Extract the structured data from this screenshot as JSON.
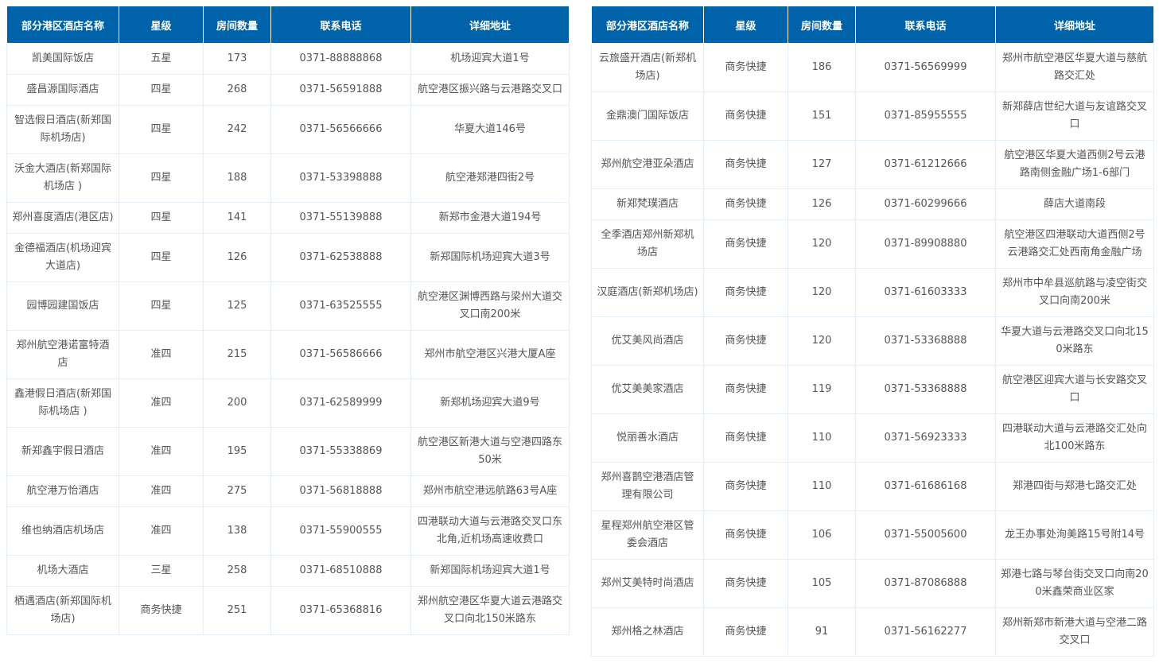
{
  "colors": {
    "header_bg": "#0062a8",
    "header_text": "#ffffff",
    "cell_text": "#555555",
    "border": "#e4eef6"
  },
  "columns": [
    "部分港区酒店名称",
    "星级",
    "房间数量",
    "联系电话",
    "详细地址"
  ],
  "left_rows": [
    [
      "凯美国际饭店",
      "五星",
      "173",
      "0371-88888868",
      "机场迎宾大道1号"
    ],
    [
      "盛昌源国际酒店",
      "四星",
      "268",
      "0371-56591888",
      "航空港区振兴路与云港路交叉口"
    ],
    [
      "智选假日酒店(新郑国际机场店)",
      "四星",
      "242",
      "0371-56566666",
      "华夏大道146号"
    ],
    [
      "沃金大酒店(新郑国际机场店 )",
      "四星",
      "188",
      "0371-53398888",
      "航空港郑港四街2号"
    ],
    [
      "郑州喜度酒店(港区店)",
      "四星",
      "141",
      "0371-55139888",
      "新郑市金港大道194号"
    ],
    [
      "金德福酒店(机场迎宾大道店)",
      "四星",
      "126",
      "0371-62538888",
      "新郑国际机场迎宾大道3号"
    ],
    [
      "园博园建国饭店",
      "四星",
      "125",
      "0371-63525555",
      "航空港区渊博西路与梁州大道交 叉口南200米"
    ],
    [
      "郑州航空港诺富特酒店",
      "准四",
      "215",
      "0371-56586666",
      "郑州市航空港区兴港大厦A座"
    ],
    [
      "鑫港假日酒店(新郑国际机场店 )",
      "准四",
      "200",
      "0371-62589999",
      "新郑机场迎宾大道9号"
    ],
    [
      "新郑鑫宇假日酒店",
      "准四",
      "195",
      "0371-55338869",
      "航空港区新港大道与空港四路东50米"
    ],
    [
      "航空港万怡酒店",
      "准四",
      "275",
      "0371-56818888",
      "郑州市航空港远航路63号A座"
    ],
    [
      "维也纳酒店机场店",
      "准四",
      "138",
      "0371-55900555",
      "四港联动大道与云港路交叉口东北角,近机场高速收费口"
    ],
    [
      "机场大酒店",
      "三星",
      "258",
      "0371-68510888",
      "新郑国际机场迎宾大道1号"
    ],
    [
      "栖遇酒店(新郑国际机场店)",
      "商务快捷",
      "251",
      "0371-65368816",
      "郑州航空港区华夏大道云港路交 叉口向北150米路东"
    ]
  ],
  "right_rows": [
    [
      "云旅盛开酒店(新郑机场店)",
      "商务快捷",
      "186",
      "0371-56569999",
      "郑州市航空港区华夏大道与慈航路交汇处"
    ],
    [
      "金鼎澳门国际饭店",
      "商务快捷",
      "151",
      "0371-85955555",
      "新郑薛店世纪大道与友谊路交叉口"
    ],
    [
      "郑州航空港亚朵酒店",
      "商务快捷",
      "127",
      "0371-61212666",
      "航空港区华夏大道西侧2号云港路南侧金融广场1-6部门"
    ],
    [
      "新郑梵璞酒店",
      "商务快捷",
      "126",
      "0371-60299666",
      "薛店大道南段"
    ],
    [
      "全季酒店郑州新郑机场店",
      "商务快捷",
      "120",
      "0371-89908880",
      "航空港区四港联动大道西侧2号云港路交汇处西南角金融广场"
    ],
    [
      "汉庭酒店(新郑机场店)",
      "商务快捷",
      "120",
      "0371-61603333",
      "郑州市中牟县巡航路与凌空街交叉口向南200米"
    ],
    [
      "优艾美风尚酒店",
      "商务快捷",
      "120",
      "0371-53368888",
      "华夏大道与云港路交叉口向北150米路东"
    ],
    [
      "优艾美美家酒店",
      "商务快捷",
      "119",
      "0371-53368888",
      "航空港区迎宾大道与长安路交叉口"
    ],
    [
      "悦丽善水酒店",
      "商务快捷",
      "110",
      "0371-56923333",
      "四港联动大道与云港路交汇处向北100米路东"
    ],
    [
      "郑州喜鹊空港酒店管理有限公司",
      "商务快捷",
      "110",
      "0371-61686168",
      "郑港四街与郑港七路交汇处"
    ],
    [
      "星程郑州航空港区管委会酒店",
      "商务快捷",
      "106",
      "0371-55005600",
      "龙王办事处洵美路15号附14号"
    ],
    [
      "郑州艾美特时尚酒店",
      "商务快捷",
      "105",
      "0371-87086888",
      "郑港七路与琴台街交叉口向南200米鑫荣商业区家"
    ],
    [
      "郑州格之林酒店",
      "商务快捷",
      "91",
      "0371-56162277",
      "郑州新郑市新港大道与空港二路交叉口"
    ]
  ]
}
